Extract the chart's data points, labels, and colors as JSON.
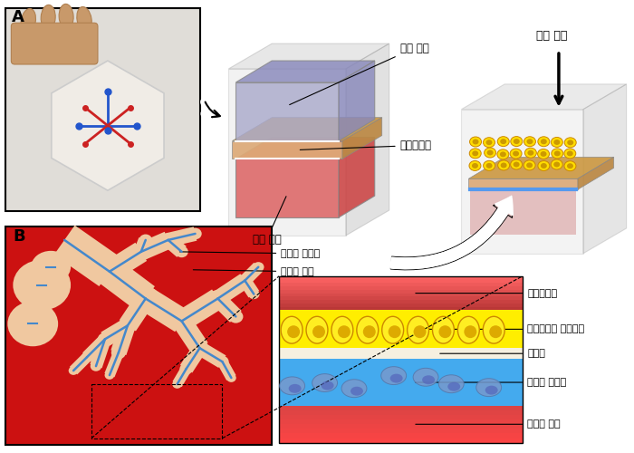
{
  "bg_color": "#ffffff",
  "labels_top": {
    "sangbu": "상부 공간",
    "bansamtu": "반삼투성막",
    "habu": "하부 공간"
  },
  "labels_right": {
    "sepo": "세포 파종"
  },
  "labels_B_left": {
    "taemoseh": "테아의 모세관",
    "sanmohyul": "산모의 혁액"
  },
  "labels_B_right": {
    "taehyul": "테아의혁액",
    "taehyulnaepi": "테아의혁관 내피세포",
    "gijeopan": "기저판",
    "taebannyong": "태반의 영양막",
    "sanmo2": "산모의 혁액"
  }
}
